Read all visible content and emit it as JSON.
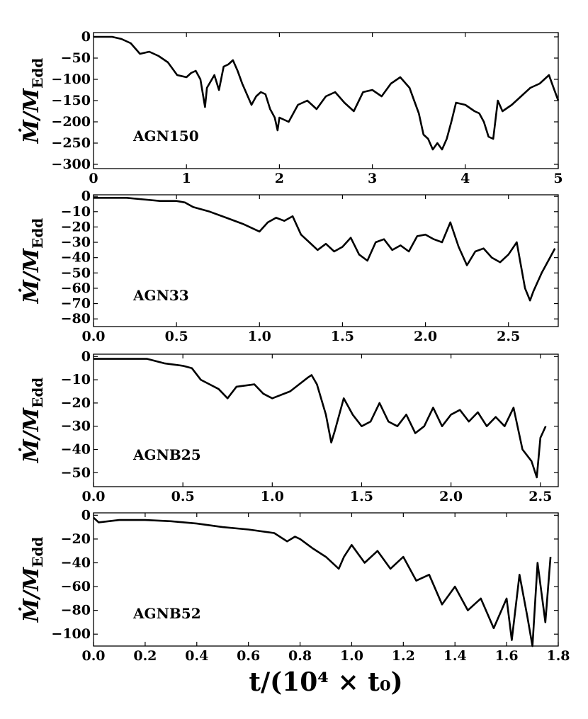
{
  "xlabel": "t/(10⁴ × t₀)",
  "chart_data": [
    {
      "type": "line",
      "annotation": "AGN150",
      "ylabel": "Ṁ/M_Edd",
      "xlim": [
        0,
        5
      ],
      "ylim": [
        -310,
        10
      ],
      "xticks": [
        0,
        1,
        2,
        3,
        4,
        5
      ],
      "xtick_labels": [
        "0",
        "1",
        "2",
        "3",
        "4",
        "5"
      ],
      "yticks": [
        0,
        -50,
        -100,
        -150,
        -200,
        -250,
        -300
      ],
      "ytick_labels": [
        "0",
        "−50",
        "−100",
        "−150",
        "−200",
        "−250",
        "−300"
      ],
      "series": [
        {
          "x": [
            0,
            0.2,
            0.3,
            0.4,
            0.5,
            0.6,
            0.7,
            0.8,
            0.9,
            1.0,
            1.05,
            1.1,
            1.15,
            1.2,
            1.22,
            1.3,
            1.35,
            1.4,
            1.45,
            1.5,
            1.55,
            1.6,
            1.7,
            1.75,
            1.8,
            1.85,
            1.9,
            1.95,
            1.98,
            2.0,
            2.1,
            2.2,
            2.3,
            2.4,
            2.5,
            2.6,
            2.7,
            2.8,
            2.9,
            3.0,
            3.1,
            3.2,
            3.3,
            3.4,
            3.45,
            3.5,
            3.55,
            3.6,
            3.65,
            3.7,
            3.75,
            3.8,
            3.85,
            3.9,
            4.0,
            4.1,
            4.15,
            4.2,
            4.25,
            4.3,
            4.35,
            4.4,
            4.5,
            4.6,
            4.7,
            4.8,
            4.9,
            4.95,
            5.0
          ],
          "y": [
            0,
            0,
            -5,
            -15,
            -40,
            -35,
            -45,
            -60,
            -90,
            -95,
            -85,
            -80,
            -100,
            -165,
            -120,
            -90,
            -125,
            -70,
            -65,
            -55,
            -80,
            -110,
            -160,
            -140,
            -130,
            -135,
            -170,
            -190,
            -220,
            -190,
            -200,
            -160,
            -150,
            -170,
            -140,
            -130,
            -155,
            -175,
            -130,
            -125,
            -140,
            -110,
            -95,
            -120,
            -150,
            -180,
            -230,
            -240,
            -265,
            -250,
            -265,
            -240,
            -200,
            -155,
            -160,
            -175,
            -180,
            -200,
            -235,
            -240,
            -150,
            -175,
            -160,
            -140,
            -120,
            -110,
            -90,
            -120,
            -150
          ]
        }
      ]
    },
    {
      "type": "line",
      "annotation": "AGN33",
      "ylabel": "Ṁ/M_Edd",
      "xlim": [
        0,
        2.8
      ],
      "ylim": [
        -85,
        1
      ],
      "xticks": [
        0,
        0.5,
        1.0,
        1.5,
        2.0,
        2.5
      ],
      "xtick_labels": [
        "0.0",
        "0.5",
        "1.0",
        "1.5",
        "2.0",
        "2.5"
      ],
      "yticks": [
        0,
        -10,
        -20,
        -30,
        -40,
        -50,
        -60,
        -70,
        -80
      ],
      "ytick_labels": [
        "0",
        "−10",
        "−20",
        "−30",
        "−40",
        "−50",
        "−60",
        "−70",
        "−80"
      ],
      "series": [
        {
          "x": [
            0,
            0.1,
            0.2,
            0.3,
            0.4,
            0.5,
            0.55,
            0.6,
            0.7,
            0.8,
            0.9,
            1.0,
            1.05,
            1.1,
            1.15,
            1.2,
            1.25,
            1.3,
            1.35,
            1.4,
            1.45,
            1.5,
            1.55,
            1.6,
            1.65,
            1.7,
            1.75,
            1.8,
            1.85,
            1.9,
            1.95,
            2.0,
            2.05,
            2.1,
            2.15,
            2.2,
            2.25,
            2.3,
            2.35,
            2.4,
            2.45,
            2.5,
            2.55,
            2.6,
            2.63,
            2.65,
            2.7,
            2.75,
            2.78
          ],
          "y": [
            -1,
            -1,
            -1,
            -2,
            -3,
            -3,
            -4,
            -7,
            -10,
            -14,
            -18,
            -23,
            -17,
            -14,
            -16,
            -13,
            -25,
            -30,
            -35,
            -31,
            -36,
            -33,
            -27,
            -38,
            -42,
            -30,
            -28,
            -35,
            -32,
            -36,
            -26,
            -25,
            -28,
            -30,
            -17,
            -33,
            -45,
            -36,
            -34,
            -40,
            -43,
            -38,
            -30,
            -60,
            -68,
            -62,
            -50,
            -40,
            -34
          ]
        }
      ]
    },
    {
      "type": "line",
      "annotation": "AGNB25",
      "ylabel": "Ṁ/M_Edd",
      "xlim": [
        0,
        2.6
      ],
      "ylim": [
        -56,
        1
      ],
      "xticks": [
        0,
        0.5,
        1.0,
        1.5,
        2.0,
        2.5
      ],
      "xtick_labels": [
        "0.0",
        "0.5",
        "1.0",
        "1.5",
        "2.0",
        "2.5"
      ],
      "yticks": [
        0,
        -10,
        -20,
        -30,
        -40,
        -50
      ],
      "ytick_labels": [
        "0",
        "−10",
        "−20",
        "−30",
        "−40",
        "−50"
      ],
      "series": [
        {
          "x": [
            0,
            0.1,
            0.2,
            0.3,
            0.4,
            0.5,
            0.55,
            0.6,
            0.65,
            0.7,
            0.75,
            0.8,
            0.9,
            0.95,
            1.0,
            1.1,
            1.15,
            1.2,
            1.22,
            1.25,
            1.3,
            1.33,
            1.35,
            1.4,
            1.45,
            1.5,
            1.55,
            1.6,
            1.65,
            1.7,
            1.75,
            1.8,
            1.85,
            1.9,
            1.95,
            2.0,
            2.05,
            2.1,
            2.15,
            2.2,
            2.25,
            2.3,
            2.35,
            2.4,
            2.45,
            2.48,
            2.5,
            2.53
          ],
          "y": [
            -1,
            -1,
            -1,
            -1,
            -3,
            -4,
            -5,
            -10,
            -12,
            -14,
            -18,
            -13,
            -12,
            -16,
            -18,
            -15,
            -12,
            -9,
            -8,
            -12,
            -25,
            -37,
            -32,
            -18,
            -25,
            -30,
            -28,
            -20,
            -28,
            -30,
            -25,
            -33,
            -30,
            -22,
            -30,
            -25,
            -23,
            -28,
            -24,
            -30,
            -26,
            -30,
            -22,
            -40,
            -45,
            -52,
            -35,
            -30
          ]
        }
      ]
    },
    {
      "type": "line",
      "annotation": "AGNB52",
      "ylabel": "Ṁ/M_Edd",
      "xlim": [
        0,
        1.8
      ],
      "ylim": [
        -110,
        2
      ],
      "xticks": [
        0,
        0.2,
        0.4,
        0.6,
        0.8,
        1.0,
        1.2,
        1.4,
        1.6,
        1.8
      ],
      "xtick_labels": [
        "0.0",
        "0.2",
        "0.4",
        "0.6",
        "0.8",
        "1.0",
        "1.2",
        "1.4",
        "1.6",
        "1.8"
      ],
      "yticks": [
        0,
        -20,
        -40,
        -60,
        -80,
        -100
      ],
      "ytick_labels": [
        "0",
        "−20",
        "−40",
        "−60",
        "−80",
        "−100"
      ],
      "series": [
        {
          "x": [
            0,
            0.02,
            0.1,
            0.2,
            0.3,
            0.4,
            0.5,
            0.6,
            0.7,
            0.75,
            0.78,
            0.8,
            0.85,
            0.9,
            0.95,
            0.97,
            1.0,
            1.05,
            1.1,
            1.15,
            1.2,
            1.25,
            1.3,
            1.35,
            1.4,
            1.45,
            1.5,
            1.55,
            1.6,
            1.62,
            1.65,
            1.68,
            1.7,
            1.72,
            1.75,
            1.77
          ],
          "y": [
            -2,
            -6,
            -4,
            -4,
            -5,
            -7,
            -10,
            -12,
            -15,
            -22,
            -18,
            -20,
            -28,
            -35,
            -45,
            -35,
            -25,
            -40,
            -30,
            -45,
            -35,
            -55,
            -50,
            -75,
            -60,
            -80,
            -70,
            -95,
            -70,
            -105,
            -50,
            -85,
            -110,
            -40,
            -90,
            -35
          ]
        }
      ]
    }
  ]
}
